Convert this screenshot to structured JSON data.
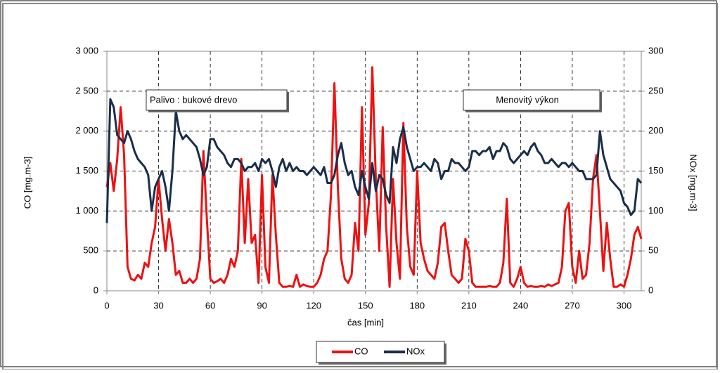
{
  "chart_data": {
    "type": "line",
    "xlabel": "čas [min]",
    "ylabel": "CO [mg.m-3]",
    "y2label": "NOx [mg.m-3]",
    "annotations": [
      "Palivo : bukové drevo",
      "Menovitý výkon"
    ],
    "xlim": [
      0,
      310
    ],
    "xticks": [
      0,
      30,
      60,
      90,
      120,
      150,
      180,
      210,
      240,
      270,
      300
    ],
    "ylim": [
      0,
      3000
    ],
    "yticks": [
      0,
      500,
      {
        "value": 1000,
        "label": "1 000"
      },
      {
        "value": 1500,
        "label": "1 500"
      },
      {
        "value": 2000,
        "label": "2 000"
      },
      {
        "value": 2500,
        "label": "2 500"
      },
      {
        "value": 3000,
        "label": "3 000"
      }
    ],
    "y2lim": [
      0,
      300
    ],
    "y2ticks": [
      0,
      50,
      100,
      150,
      200,
      250,
      300
    ],
    "grid": true,
    "legend": "bottom",
    "x": [
      0,
      2,
      4,
      6,
      8,
      10,
      12,
      14,
      16,
      18,
      20,
      22,
      24,
      26,
      28,
      30,
      32,
      34,
      36,
      38,
      40,
      42,
      44,
      46,
      48,
      50,
      52,
      54,
      56,
      58,
      60,
      62,
      64,
      66,
      68,
      70,
      72,
      74,
      76,
      78,
      80,
      82,
      84,
      86,
      88,
      90,
      92,
      94,
      96,
      98,
      100,
      102,
      104,
      106,
      108,
      110,
      112,
      114,
      116,
      118,
      120,
      122,
      124,
      126,
      128,
      130,
      132,
      134,
      136,
      138,
      140,
      142,
      144,
      146,
      148,
      150,
      152,
      154,
      156,
      158,
      160,
      162,
      164,
      166,
      168,
      170,
      172,
      174,
      176,
      178,
      180,
      182,
      184,
      186,
      188,
      190,
      192,
      194,
      196,
      198,
      200,
      202,
      204,
      206,
      208,
      210,
      212,
      214,
      216,
      218,
      220,
      222,
      224,
      226,
      228,
      230,
      232,
      234,
      236,
      238,
      240,
      242,
      244,
      246,
      248,
      250,
      252,
      254,
      256,
      258,
      260,
      262,
      264,
      266,
      268,
      270,
      272,
      274,
      276,
      278,
      280,
      282,
      284,
      286,
      288,
      290,
      292,
      294,
      296,
      298,
      300,
      302,
      304,
      306,
      308,
      310
    ],
    "series": [
      {
        "name": "CO",
        "color": "#ee1111",
        "axis": "y",
        "values": [
          1300,
          1600,
          1250,
          1650,
          2300,
          1700,
          300,
          150,
          130,
          200,
          150,
          350,
          300,
          600,
          800,
          1400,
          900,
          500,
          900,
          600,
          200,
          250,
          100,
          100,
          150,
          100,
          150,
          400,
          1750,
          900,
          150,
          100,
          120,
          150,
          100,
          200,
          400,
          300,
          500,
          1650,
          600,
          1400,
          600,
          700,
          100,
          1450,
          300,
          100,
          1450,
          700,
          100,
          50,
          50,
          60,
          50,
          200,
          50,
          80,
          60,
          50,
          50,
          100,
          200,
          400,
          500,
          1200,
          2600,
          1300,
          400,
          150,
          100,
          200,
          850,
          500,
          2300,
          700,
          1100,
          2800,
          1400,
          500,
          2050,
          800,
          50,
          1400,
          600,
          150,
          2100,
          800,
          300,
          200,
          1500,
          600,
          400,
          250,
          200,
          150,
          350,
          800,
          850,
          500,
          200,
          150,
          100,
          150,
          650,
          500,
          100,
          50,
          50,
          50,
          50,
          60,
          50,
          50,
          100,
          350,
          1150,
          100,
          50,
          150,
          300,
          100,
          50,
          60,
          50,
          50,
          60,
          50,
          80,
          60,
          80,
          100,
          300,
          1000,
          1100,
          300,
          100,
          500,
          150,
          200,
          600,
          1400,
          1700,
          1000,
          250,
          850,
          400,
          50,
          50,
          80,
          50,
          200,
          400,
          700,
          800,
          650
        ]
      },
      {
        "name": "NOx",
        "color": "#1a2e4a",
        "axis": "y2",
        "values": [
          85,
          240,
          230,
          195,
          190,
          185,
          200,
          190,
          175,
          165,
          160,
          155,
          145,
          100,
          130,
          140,
          150,
          130,
          100,
          150,
          225,
          200,
          190,
          195,
          190,
          185,
          180,
          165,
          145,
          155,
          190,
          190,
          180,
          175,
          170,
          160,
          155,
          165,
          165,
          160,
          150,
          155,
          155,
          160,
          150,
          165,
          160,
          165,
          150,
          130,
          155,
          165,
          150,
          160,
          150,
          155,
          150,
          150,
          145,
          150,
          155,
          150,
          145,
          155,
          135,
          135,
          145,
          170,
          185,
          160,
          145,
          150,
          130,
          120,
          150,
          130,
          115,
          160,
          125,
          145,
          140,
          120,
          110,
          180,
          160,
          190,
          205,
          180,
          165,
          150,
          155,
          155,
          160,
          155,
          150,
          165,
          160,
          140,
          150,
          150,
          165,
          160,
          160,
          155,
          150,
          155,
          175,
          175,
          170,
          175,
          175,
          180,
          165,
          175,
          175,
          185,
          180,
          165,
          160,
          165,
          170,
          175,
          170,
          180,
          185,
          175,
          170,
          160,
          160,
          165,
          160,
          155,
          160,
          160,
          155,
          160,
          155,
          150,
          150,
          140,
          140,
          140,
          145,
          200,
          170,
          155,
          140,
          135,
          130,
          125,
          110,
          105,
          95,
          100,
          140,
          135
        ]
      }
    ]
  }
}
